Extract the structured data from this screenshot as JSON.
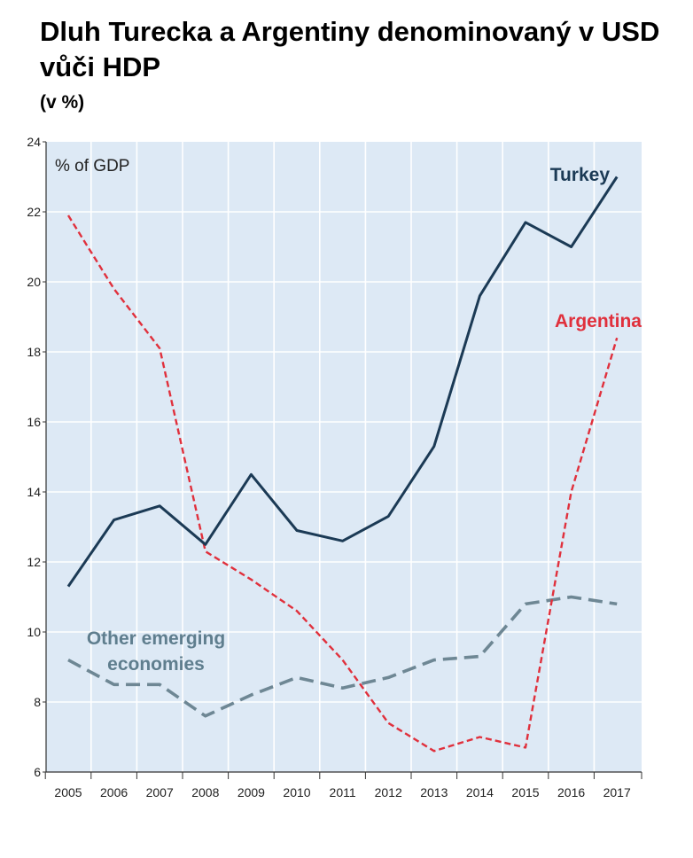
{
  "header": {
    "title": "Dluh Turecka a Argentiny denominovaný v USD vůči HDP",
    "subtitle": "(v %)"
  },
  "chart_data": {
    "type": "line",
    "title": "Dluh Turecka a Argentiny denominovaný v USD vůči HDP",
    "subtitle": "(v %)",
    "annotation": "% of GDP",
    "xlabel": "",
    "ylabel": "% of GDP",
    "x": [
      2005,
      2006,
      2007,
      2008,
      2009,
      2010,
      2011,
      2012,
      2013,
      2014,
      2015,
      2016,
      2017
    ],
    "ylim": [
      6,
      24
    ],
    "yticks": [
      6,
      8,
      10,
      12,
      14,
      16,
      18,
      20,
      22,
      24
    ],
    "grid": true,
    "series": [
      {
        "name": "Turkey",
        "color": "#1b3a55",
        "style": "solid",
        "label_color": "#1b3a55",
        "values": [
          11.3,
          13.2,
          13.6,
          12.5,
          14.5,
          12.9,
          12.6,
          13.3,
          15.3,
          19.6,
          21.7,
          21.0,
          23.0
        ]
      },
      {
        "name": "Argentina",
        "color": "#e0303c",
        "style": "dashed",
        "label_color": "#e0303c",
        "values": [
          21.9,
          19.8,
          18.1,
          12.3,
          11.5,
          10.6,
          9.2,
          7.4,
          6.6,
          7.0,
          6.7,
          14.0,
          18.4
        ]
      },
      {
        "name": "Other emerging economies",
        "label_lines": [
          "Other emerging",
          "economies"
        ],
        "color": "#6e8794",
        "style": "dashed",
        "label_color": "#5f7e8e",
        "values": [
          9.2,
          8.5,
          8.5,
          7.6,
          8.2,
          8.7,
          8.4,
          8.7,
          9.2,
          9.3,
          10.8,
          11.0,
          10.8
        ]
      }
    ]
  }
}
